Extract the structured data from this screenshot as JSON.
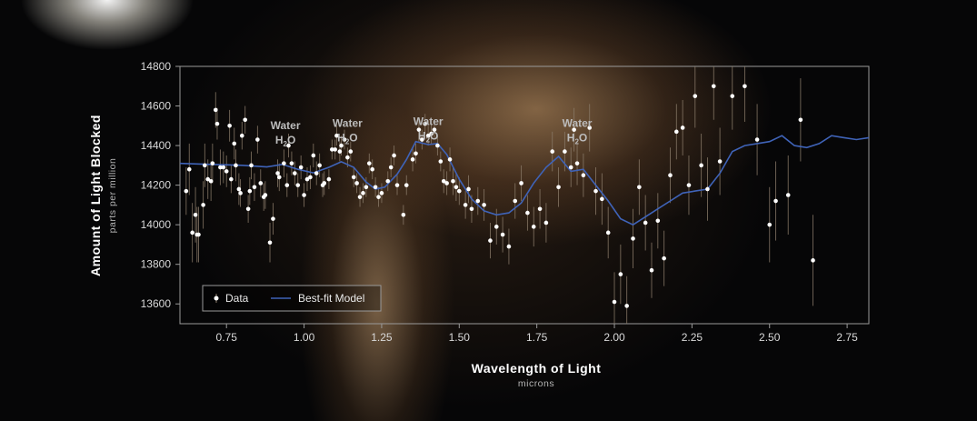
{
  "chart_data": {
    "type": "scatter",
    "xlabel": "Wavelength of Light",
    "xunit": "microns",
    "ylabel": "Amount of Light Blocked",
    "yunit": "parts per million",
    "xlim": [
      0.6,
      2.82
    ],
    "ylim": [
      13500,
      14800
    ],
    "xticks": [
      "0.75",
      "1.00",
      "1.25",
      "1.50",
      "1.75",
      "2.00",
      "2.25",
      "2.50",
      "2.75"
    ],
    "yticks": [
      "13600",
      "13800",
      "14000",
      "14200",
      "14400",
      "14600",
      "14800"
    ],
    "grid": false,
    "legend": {
      "position": "bottom-left",
      "data_label": "Data",
      "model_label": "Best-fit Model"
    },
    "colors": {
      "points": "#ffffff",
      "error_bars": "#8a7a68",
      "model": "#3f63b8",
      "frame": "#9a9a9a"
    },
    "annotations": [
      {
        "text": "Water",
        "sub": "H",
        "sub2": "O",
        "x": 0.94,
        "y": 14410
      },
      {
        "text": "Water",
        "sub": "H",
        "sub2": "O",
        "x": 1.14,
        "y": 14420
      },
      {
        "text": "Water",
        "sub": "H",
        "sub2": "O",
        "x": 1.4,
        "y": 14430
      },
      {
        "text": "Water",
        "sub": "H",
        "sub2": "O",
        "x": 1.88,
        "y": 14420
      }
    ],
    "data_series": {
      "name": "Data",
      "points": [
        [
          0.62,
          14170,
          120
        ],
        [
          0.63,
          14280,
          130
        ],
        [
          0.64,
          13960,
          150
        ],
        [
          0.65,
          14050,
          140
        ],
        [
          0.655,
          13950,
          140
        ],
        [
          0.66,
          13950,
          140
        ],
        [
          0.675,
          14100,
          120
        ],
        [
          0.68,
          14300,
          110
        ],
        [
          0.69,
          14230,
          100
        ],
        [
          0.7,
          14220,
          100
        ],
        [
          0.705,
          14310,
          100
        ],
        [
          0.715,
          14580,
          90
        ],
        [
          0.72,
          14510,
          80
        ],
        [
          0.73,
          14290,
          90
        ],
        [
          0.74,
          14290,
          80
        ],
        [
          0.75,
          14270,
          80
        ],
        [
          0.76,
          14500,
          80
        ],
        [
          0.765,
          14230,
          70
        ],
        [
          0.775,
          14410,
          80
        ],
        [
          0.78,
          14300,
          80
        ],
        [
          0.79,
          14180,
          80
        ],
        [
          0.795,
          14160,
          70
        ],
        [
          0.8,
          14450,
          70
        ],
        [
          0.81,
          14530,
          70
        ],
        [
          0.82,
          14080,
          70
        ],
        [
          0.825,
          14170,
          70
        ],
        [
          0.83,
          14300,
          70
        ],
        [
          0.84,
          14190,
          70
        ],
        [
          0.85,
          14430,
          70
        ],
        [
          0.86,
          14210,
          70
        ],
        [
          0.87,
          14140,
          70
        ],
        [
          0.875,
          14150,
          70
        ],
        [
          0.89,
          13910,
          100
        ],
        [
          0.9,
          14030,
          80
        ],
        [
          0.915,
          14260,
          70
        ],
        [
          0.92,
          14240,
          70
        ],
        [
          0.935,
          14310,
          70
        ],
        [
          0.945,
          14200,
          60
        ],
        [
          0.95,
          14400,
          60
        ],
        [
          0.96,
          14310,
          60
        ],
        [
          0.97,
          14260,
          60
        ],
        [
          0.98,
          14200,
          60
        ],
        [
          0.99,
          14290,
          60
        ],
        [
          1.0,
          14150,
          60
        ],
        [
          1.01,
          14230,
          60
        ],
        [
          1.02,
          14240,
          60
        ],
        [
          1.03,
          14350,
          60
        ],
        [
          1.04,
          14260,
          60
        ],
        [
          1.05,
          14300,
          60
        ],
        [
          1.06,
          14200,
          60
        ],
        [
          1.065,
          14210,
          60
        ],
        [
          1.08,
          14230,
          50
        ],
        [
          1.09,
          14380,
          50
        ],
        [
          1.1,
          14380,
          50
        ],
        [
          1.105,
          14450,
          50
        ],
        [
          1.115,
          14370,
          50
        ],
        [
          1.12,
          14400,
          50
        ],
        [
          1.13,
          14430,
          50
        ],
        [
          1.14,
          14340,
          50
        ],
        [
          1.15,
          14370,
          50
        ],
        [
          1.16,
          14240,
          50
        ],
        [
          1.17,
          14210,
          50
        ],
        [
          1.18,
          14140,
          50
        ],
        [
          1.19,
          14160,
          50
        ],
        [
          1.2,
          14190,
          50
        ],
        [
          1.21,
          14310,
          50
        ],
        [
          1.22,
          14280,
          50
        ],
        [
          1.23,
          14190,
          50
        ],
        [
          1.24,
          14140,
          50
        ],
        [
          1.25,
          14160,
          50
        ],
        [
          1.27,
          14220,
          50
        ],
        [
          1.28,
          14290,
          50
        ],
        [
          1.29,
          14350,
          50
        ],
        [
          1.3,
          14200,
          50
        ],
        [
          1.32,
          14050,
          50
        ],
        [
          1.33,
          14200,
          50
        ],
        [
          1.35,
          14330,
          60
        ],
        [
          1.36,
          14360,
          50
        ],
        [
          1.37,
          14480,
          60
        ],
        [
          1.38,
          14430,
          50
        ],
        [
          1.39,
          14510,
          50
        ],
        [
          1.4,
          14450,
          50
        ],
        [
          1.41,
          14460,
          50
        ],
        [
          1.42,
          14480,
          50
        ],
        [
          1.43,
          14400,
          50
        ],
        [
          1.44,
          14320,
          50
        ],
        [
          1.45,
          14220,
          60
        ],
        [
          1.46,
          14210,
          60
        ],
        [
          1.47,
          14330,
          60
        ],
        [
          1.48,
          14220,
          70
        ],
        [
          1.49,
          14190,
          70
        ],
        [
          1.5,
          14170,
          70
        ],
        [
          1.52,
          14100,
          70
        ],
        [
          1.53,
          14180,
          70
        ],
        [
          1.54,
          14080,
          70
        ],
        [
          1.56,
          14120,
          70
        ],
        [
          1.58,
          14100,
          80
        ],
        [
          1.6,
          13920,
          90
        ],
        [
          1.62,
          13990,
          90
        ],
        [
          1.64,
          13950,
          90
        ],
        [
          1.66,
          13890,
          90
        ],
        [
          1.68,
          14120,
          90
        ],
        [
          1.7,
          14210,
          90
        ],
        [
          1.72,
          14060,
          90
        ],
        [
          1.74,
          13990,
          100
        ],
        [
          1.76,
          14080,
          100
        ],
        [
          1.78,
          14010,
          100
        ],
        [
          1.8,
          14370,
          100
        ],
        [
          1.82,
          14190,
          100
        ],
        [
          1.84,
          14370,
          100
        ],
        [
          1.86,
          14290,
          100
        ],
        [
          1.87,
          14480,
          110
        ],
        [
          1.88,
          14310,
          110
        ],
        [
          1.9,
          14250,
          110
        ],
        [
          1.92,
          14490,
          120
        ],
        [
          1.94,
          14170,
          120
        ],
        [
          1.96,
          14130,
          130
        ],
        [
          1.98,
          13960,
          130
        ],
        [
          2.0,
          13610,
          150
        ],
        [
          2.02,
          13750,
          150
        ],
        [
          2.04,
          13590,
          150
        ],
        [
          2.06,
          13930,
          150
        ],
        [
          2.08,
          14190,
          140
        ],
        [
          2.1,
          14010,
          140
        ],
        [
          2.12,
          13770,
          140
        ],
        [
          2.14,
          14020,
          140
        ],
        [
          2.16,
          13830,
          140
        ],
        [
          2.18,
          14250,
          140
        ],
        [
          2.2,
          14470,
          140
        ],
        [
          2.22,
          14490,
          140
        ],
        [
          2.24,
          14200,
          150
        ],
        [
          2.26,
          14650,
          160
        ],
        [
          2.28,
          14300,
          160
        ],
        [
          2.3,
          14180,
          160
        ],
        [
          2.32,
          14700,
          170
        ],
        [
          2.34,
          14320,
          170
        ],
        [
          2.38,
          14650,
          170
        ],
        [
          2.42,
          14700,
          180
        ],
        [
          2.46,
          14430,
          180
        ],
        [
          2.5,
          14000,
          190
        ],
        [
          2.52,
          14120,
          200
        ],
        [
          2.56,
          14150,
          200
        ],
        [
          2.6,
          14530,
          210
        ],
        [
          2.64,
          13820,
          230
        ]
      ]
    },
    "model_series": {
      "name": "Best-fit Model",
      "points": [
        [
          0.6,
          14310
        ],
        [
          0.7,
          14305
        ],
        [
          0.8,
          14300
        ],
        [
          0.88,
          14292
        ],
        [
          0.93,
          14305
        ],
        [
          0.98,
          14280
        ],
        [
          1.03,
          14262
        ],
        [
          1.08,
          14290
        ],
        [
          1.12,
          14318
        ],
        [
          1.16,
          14290
        ],
        [
          1.2,
          14215
        ],
        [
          1.23,
          14180
        ],
        [
          1.26,
          14190
        ],
        [
          1.3,
          14255
        ],
        [
          1.33,
          14330
        ],
        [
          1.36,
          14420
        ],
        [
          1.4,
          14405
        ],
        [
          1.43,
          14410
        ],
        [
          1.46,
          14355
        ],
        [
          1.5,
          14230
        ],
        [
          1.54,
          14130
        ],
        [
          1.58,
          14070
        ],
        [
          1.62,
          14050
        ],
        [
          1.66,
          14060
        ],
        [
          1.7,
          14110
        ],
        [
          1.74,
          14210
        ],
        [
          1.78,
          14290
        ],
        [
          1.82,
          14345
        ],
        [
          1.86,
          14270
        ],
        [
          1.9,
          14280
        ],
        [
          1.94,
          14200
        ],
        [
          1.98,
          14120
        ],
        [
          2.02,
          14030
        ],
        [
          2.06,
          14000
        ],
        [
          2.1,
          14040
        ],
        [
          2.14,
          14080
        ],
        [
          2.18,
          14120
        ],
        [
          2.22,
          14160
        ],
        [
          2.26,
          14170
        ],
        [
          2.3,
          14180
        ],
        [
          2.34,
          14260
        ],
        [
          2.38,
          14370
        ],
        [
          2.42,
          14400
        ],
        [
          2.46,
          14410
        ],
        [
          2.5,
          14420
        ],
        [
          2.54,
          14450
        ],
        [
          2.58,
          14400
        ],
        [
          2.62,
          14390
        ],
        [
          2.66,
          14410
        ],
        [
          2.7,
          14450
        ],
        [
          2.74,
          14440
        ],
        [
          2.78,
          14430
        ],
        [
          2.82,
          14440
        ]
      ]
    }
  }
}
